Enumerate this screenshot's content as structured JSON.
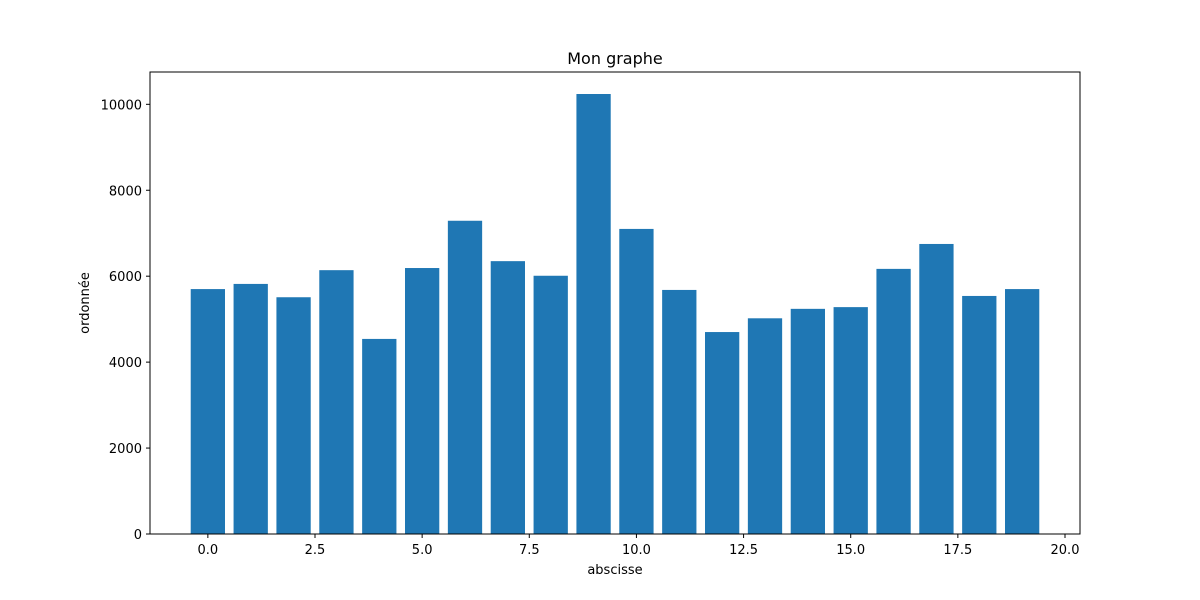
{
  "chart_data": {
    "type": "bar",
    "title": "Mon graphe",
    "xlabel": "abscisse",
    "ylabel": "ordonnée",
    "x": [
      0,
      1,
      2,
      3,
      4,
      5,
      6,
      7,
      8,
      9,
      10,
      11,
      12,
      13,
      14,
      15,
      16,
      17,
      18,
      19
    ],
    "values": [
      5700,
      5820,
      5510,
      6140,
      4540,
      6190,
      7290,
      6350,
      6010,
      10240,
      7100,
      5680,
      4700,
      5020,
      5240,
      5280,
      6170,
      6750,
      5540,
      5700
    ],
    "xlim": [
      -1.35,
      20.35
    ],
    "ylim": [
      0,
      10752
    ],
    "xticks": [
      0.0,
      2.5,
      5.0,
      7.5,
      10.0,
      12.5,
      15.0,
      17.5,
      20.0
    ],
    "xtick_labels": [
      "0.0",
      "2.5",
      "5.0",
      "7.5",
      "10.0",
      "12.5",
      "15.0",
      "17.5",
      "20.0"
    ],
    "yticks": [
      0,
      2000,
      4000,
      6000,
      8000,
      10000
    ],
    "ytick_labels": [
      "0",
      "2000",
      "4000",
      "6000",
      "8000",
      "10000"
    ],
    "bar_width": 0.8,
    "bar_color": "#1f77b4",
    "grid": false,
    "legend": false
  }
}
